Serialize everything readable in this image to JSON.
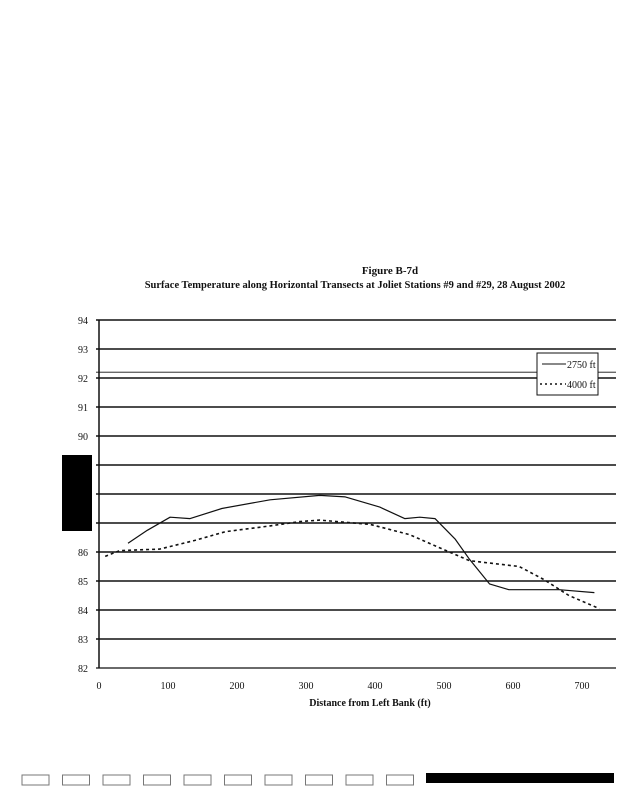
{
  "chart_data": {
    "type": "line",
    "figure_label": "Figure B-7d",
    "title": "Surface Temperature along Horizontal Transects at Joliet Stations #9 and #29, 28 August 2002",
    "xlabel": "Distance from Left Bank (ft)",
    "ylabel": "",
    "xlim": [
      0,
      750
    ],
    "ylim": [
      82,
      94
    ],
    "xticks": [
      0,
      100,
      200,
      300,
      400,
      500,
      600,
      700
    ],
    "yticks": [
      82,
      83,
      84,
      85,
      86,
      87,
      88,
      89,
      90,
      91,
      92,
      93,
      94
    ],
    "ytick_labels_visible": [
      "82",
      "83",
      "84",
      "85",
      "86",
      "90",
      "91",
      "92",
      "93",
      "94"
    ],
    "grid": true,
    "legend_position": "top-right",
    "series": [
      {
        "name": "2750 ft",
        "style": "solid",
        "x": [
          42,
          70,
          103,
          132,
          178,
          248,
          320,
          357,
          407,
          443,
          465,
          487,
          516,
          537,
          566,
          594,
          667,
          718
        ],
        "y": [
          86.3,
          86.75,
          87.2,
          87.15,
          87.5,
          87.8,
          87.95,
          87.9,
          87.55,
          87.15,
          87.2,
          87.15,
          86.45,
          85.75,
          84.9,
          84.7,
          84.7,
          84.6
        ]
      },
      {
        "name": "4000 ft",
        "style": "dotted",
        "x": [
          9,
          30,
          88,
          139,
          183,
          248,
          291,
          320,
          393,
          450,
          493,
          537,
          609,
          645,
          681,
          725
        ],
        "y": [
          85.85,
          86.05,
          86.1,
          86.4,
          86.7,
          86.9,
          87.05,
          87.1,
          86.95,
          86.6,
          86.15,
          85.7,
          85.5,
          85.05,
          84.5,
          84.05
        ]
      }
    ]
  }
}
